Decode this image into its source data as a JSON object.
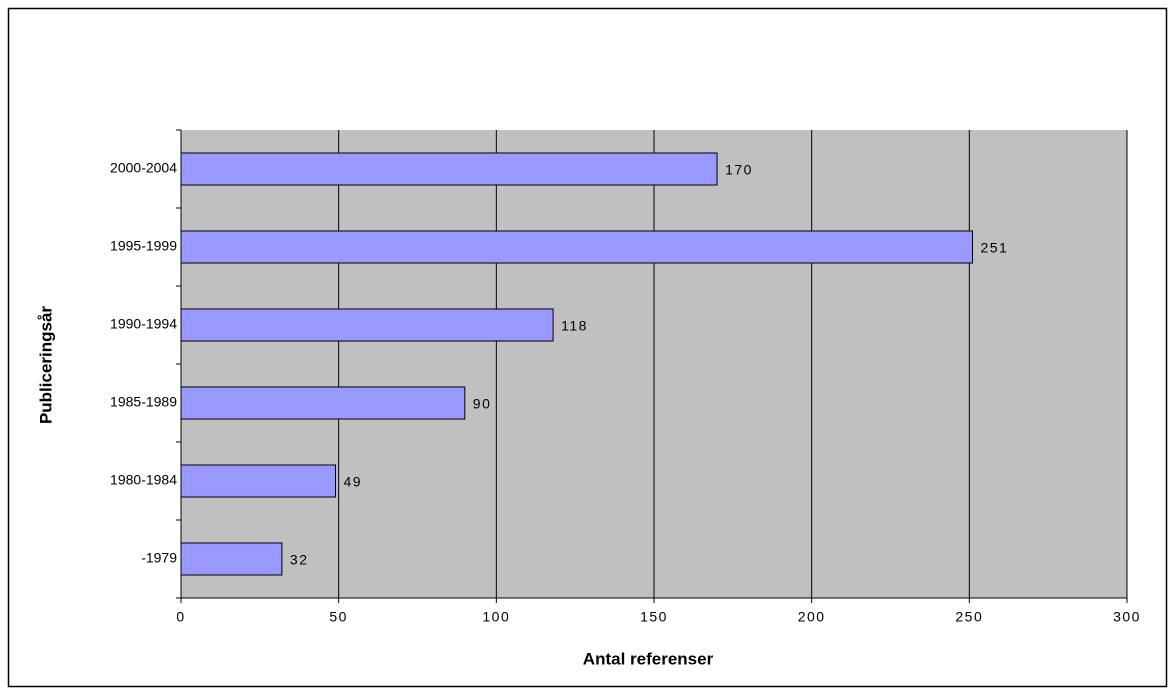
{
  "chart_data": {
    "type": "barh",
    "xlabel": "Antal referenser",
    "ylabel": "Publiceringsår",
    "categories": [
      "2000-2004",
      "1995-1999",
      "1990-1994",
      "1985-1989",
      "1980-1984",
      "-1979"
    ],
    "values": [
      170,
      251,
      118,
      90,
      49,
      32
    ],
    "color": "#9999ff",
    "xlim": [
      0,
      300
    ],
    "xticks": [
      0,
      50,
      100,
      150,
      200,
      250,
      300
    ],
    "grid": true
  }
}
